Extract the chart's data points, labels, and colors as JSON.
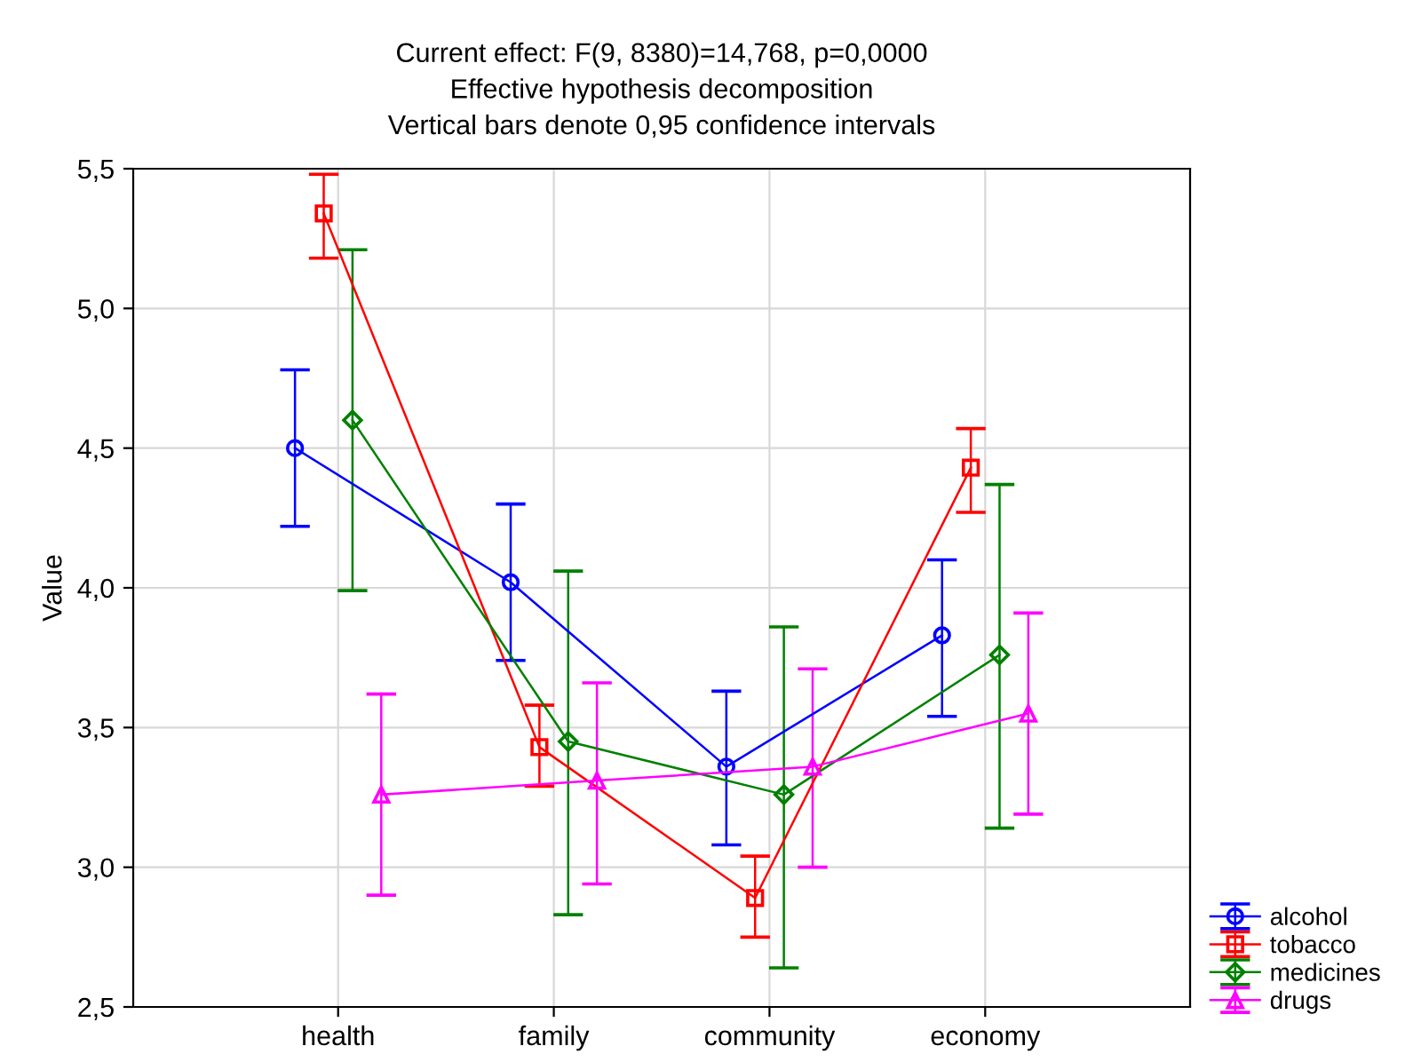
{
  "chart_data": {
    "type": "line",
    "title": "Current effect: F(9, 8380)=14,768, p=0,0000\nEffective hypothesis decomposition\nVertical bars denote 0,95 confidence intervals",
    "ylabel": "Value",
    "categories": [
      "health",
      "family",
      "community",
      "economy"
    ],
    "series": [
      {
        "name": "alcohol",
        "color": "#0000ff",
        "marker": "circle",
        "values": [
          4.5,
          4.02,
          3.36,
          3.83
        ],
        "errors": [
          [
            4.22,
            4.78
          ],
          [
            3.74,
            4.3
          ],
          [
            3.08,
            3.63
          ],
          [
            3.54,
            4.1
          ]
        ]
      },
      {
        "name": "tobacco",
        "color": "#ff0000",
        "marker": "square",
        "values": [
          5.34,
          3.43,
          2.89,
          4.43
        ],
        "errors": [
          [
            5.18,
            5.48
          ],
          [
            3.29,
            3.58
          ],
          [
            2.75,
            3.04
          ],
          [
            4.27,
            4.57
          ]
        ]
      },
      {
        "name": "medicines",
        "color": "#008000",
        "marker": "diamond",
        "values": [
          4.6,
          3.45,
          3.26,
          3.76
        ],
        "errors": [
          [
            3.99,
            5.21
          ],
          [
            2.83,
            4.06
          ],
          [
            2.64,
            3.86
          ],
          [
            3.14,
            4.37
          ]
        ]
      },
      {
        "name": "drugs",
        "color": "#ff00ff",
        "marker": "triangle",
        "values": [
          3.26,
          3.31,
          3.36,
          3.55
        ],
        "errors": [
          [
            2.9,
            3.62
          ],
          [
            2.94,
            3.66
          ],
          [
            3.0,
            3.71
          ],
          [
            3.19,
            3.91
          ]
        ]
      }
    ],
    "ylim": [
      2.5,
      5.5
    ],
    "yticks": [
      {
        "value": 2.5,
        "label": "2,5"
      },
      {
        "value": 3.0,
        "label": "3,0"
      },
      {
        "value": 3.5,
        "label": "3,5"
      },
      {
        "value": 4.0,
        "label": "4,0"
      },
      {
        "value": 4.5,
        "label": "4,5"
      },
      {
        "value": 5.0,
        "label": "5,0"
      },
      {
        "value": 5.5,
        "label": "5,5"
      }
    ],
    "grid": true,
    "legend": "bottom right",
    "line_style": "solid"
  }
}
